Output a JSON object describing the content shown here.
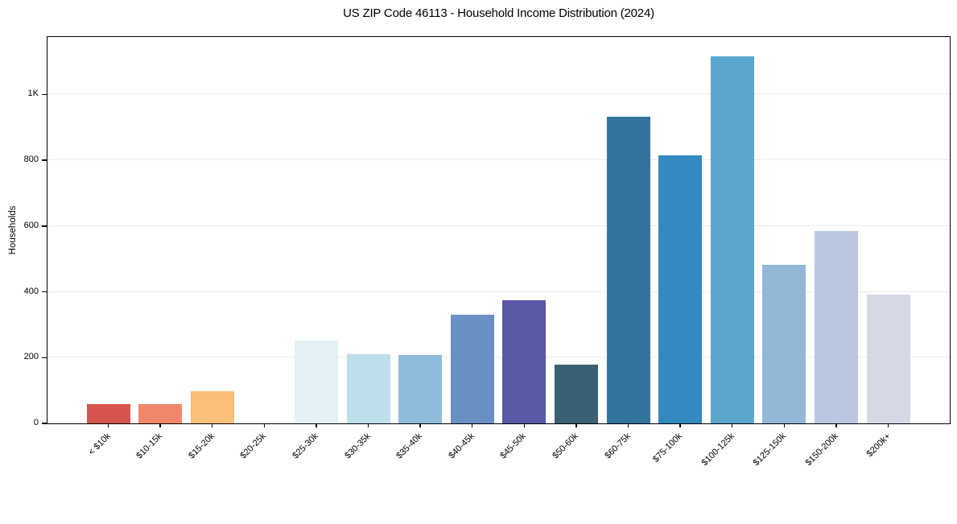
{
  "chart_data": {
    "type": "bar",
    "title": "US ZIP Code 46113 - Household Income Distribution (2024)",
    "ylabel": "Households",
    "xlabel": "",
    "categories": [
      "< $10k",
      "$10-15k",
      "$15-20k",
      "$20-25k",
      "$25-30k",
      "$30-35k",
      "$35-40k",
      "$40-45k",
      "$45-50k",
      "$50-60k",
      "$60-75k",
      "$75-100k",
      "$100-125k",
      "$125-150k",
      "$150-200k",
      "$200k+"
    ],
    "values": [
      58,
      59,
      98,
      0,
      252,
      210,
      207,
      331,
      374,
      178,
      933,
      815,
      1116,
      481,
      586,
      392
    ],
    "bar_colors": [
      "#d5544c",
      "#f0876a",
      "#fbbe7b",
      "#fde9a9",
      "#e3f1f4",
      "#bddfeb",
      "#8fbcdb",
      "#6a8fc3",
      "#5959a8",
      "#3a6173",
      "#33749c",
      "#3389c0",
      "#5ba6cd",
      "#93b7d7",
      "#b9c8e0",
      "#d7d8e6"
    ],
    "ylim": [
      0,
      1172
    ],
    "yticks": [
      0,
      200,
      400,
      600,
      800,
      1000
    ],
    "ytick_labels": [
      "0",
      "200",
      "400",
      "600",
      "800",
      "1K"
    ],
    "grid": true,
    "gridline_color": "#eaeaea",
    "background_color": "#ffffff",
    "spine_color": "#000000",
    "legend": null
  }
}
